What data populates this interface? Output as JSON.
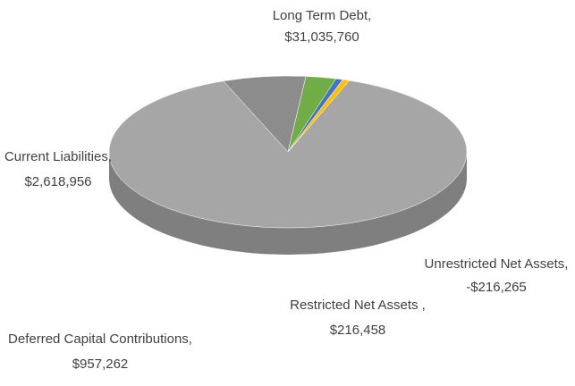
{
  "chart_data": {
    "type": "pie",
    "categories": [
      "Long Term Debt,",
      "Current Liabilities,",
      "Deferred Capital Contributions,",
      "Restricted Net Assets ,",
      "Unrestricted Net Assets,"
    ],
    "values": [
      31035760,
      2618956,
      957262,
      216458,
      -216265
    ],
    "value_labels": [
      "$31,035,760",
      "$2,618,956",
      "$957,262",
      "$216,458",
      "-$216,265"
    ],
    "colors": [
      "#a6a6a6",
      "#8c8c8c",
      "#70ad47",
      "#4472c4",
      "#ffc000"
    ]
  }
}
